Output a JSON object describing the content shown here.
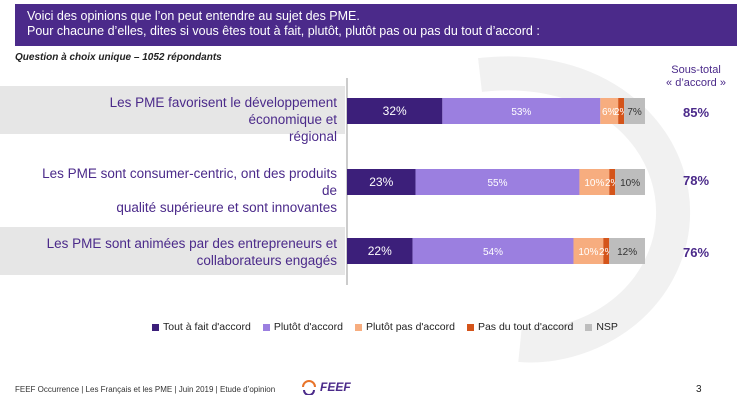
{
  "header": {
    "line1": "Voici des opinions que l’on peut entendre au sujet des PME.",
    "line2": "Pour chacune d’elles, dites si vous êtes tout à fait, plutôt, plutôt pas ou pas du tout d’accord :"
  },
  "subnote": "Question à choix unique – 1052 répondants",
  "subtotal_header": {
    "line1": "Sous-total",
    "line2": "« d’accord »"
  },
  "rows": [
    {
      "label_line1": "Les PME favorisent le développement économique et",
      "label_line2": "régional",
      "subtotal": "85%"
    },
    {
      "label_line1": "Les PME sont consumer-centric, ont des produits de",
      "label_line2": "qualité supérieure et sont innovantes",
      "subtotal": "78%"
    },
    {
      "label_line1": "Les PME sont animées par des entrepreneurs et",
      "label_line2": "collaborateurs engagés",
      "subtotal": "76%"
    }
  ],
  "chart_data": {
    "type": "bar",
    "orientation": "horizontal",
    "stacked": true,
    "categories": [
      "Les PME favorisent le développement économique et régional",
      "Les PME sont consumer-centric, ont des produits de qualité supérieure et sont innovantes",
      "Les PME sont animées par des entrepreneurs et collaborateurs engagés"
    ],
    "series": [
      {
        "name": "Tout à fait d'accord",
        "color": "#3c1f7a",
        "values": [
          32,
          23,
          22
        ]
      },
      {
        "name": "Plutôt d'accord",
        "color": "#9b7fe0",
        "values": [
          53,
          55,
          54
        ]
      },
      {
        "name": "Plutôt pas d'accord",
        "color": "#f7ad7f",
        "values": [
          6,
          10,
          10
        ]
      },
      {
        "name": "Pas du tout d'accord",
        "color": "#d4541a",
        "values": [
          2,
          2,
          2
        ]
      },
      {
        "name": "NSP",
        "color": "#bdbdbd",
        "values": [
          7,
          10,
          12
        ]
      }
    ],
    "xlim": [
      0,
      100
    ],
    "subtotals": [
      85,
      78,
      76
    ],
    "legend_position": "bottom"
  },
  "footer": {
    "text": "FEEF Occurrence | Les Français et les PME | Juin 2019 | Etude d’opinion",
    "logo_text": "FEEF",
    "page_number": "3"
  }
}
